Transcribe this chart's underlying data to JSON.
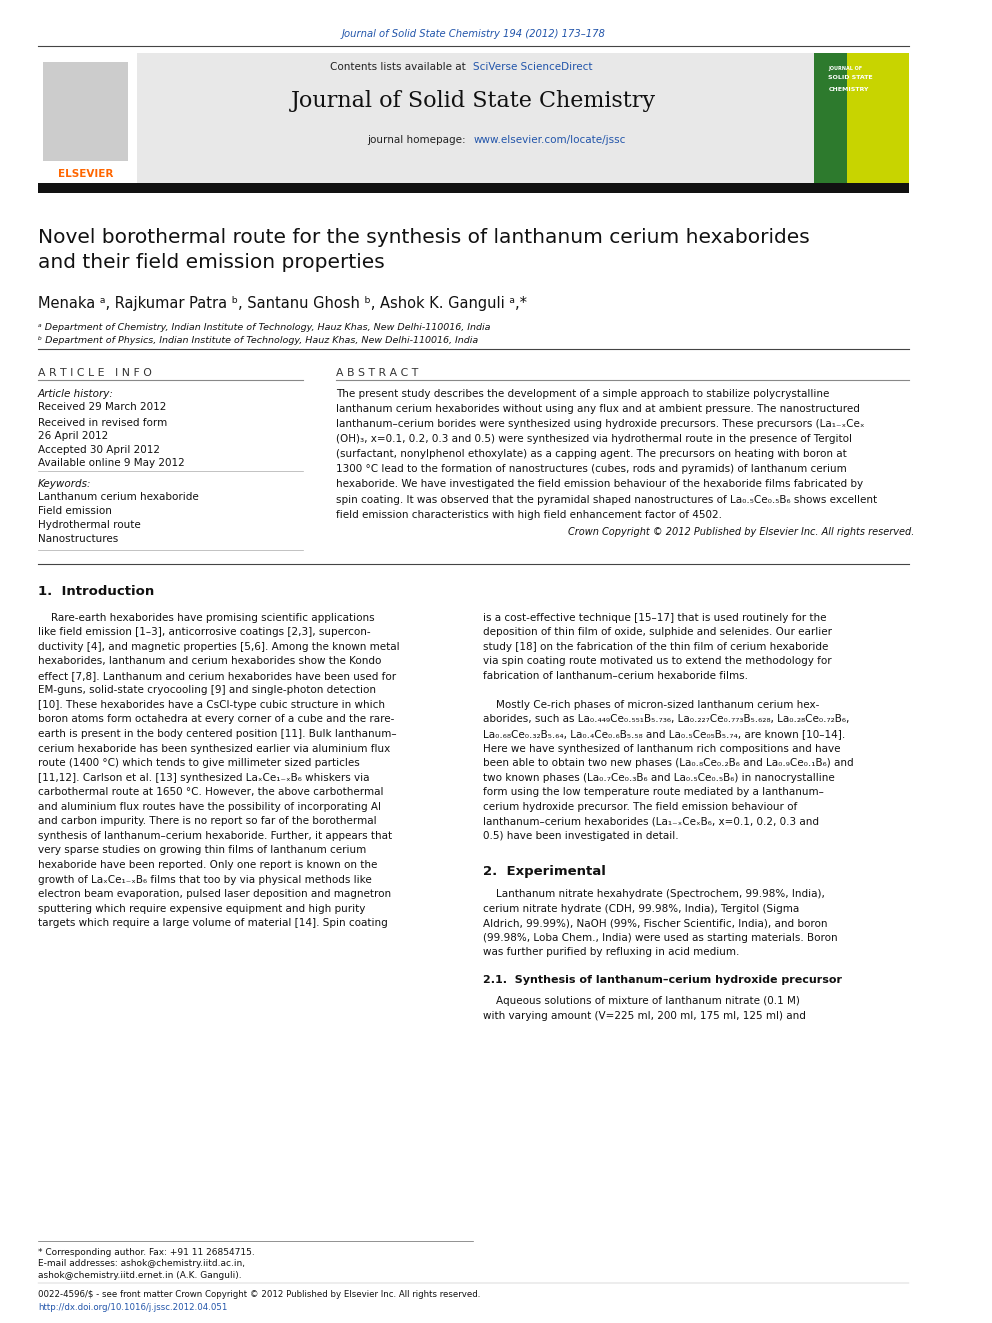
{
  "page_width": 9.92,
  "page_height": 13.23,
  "bg_color": "#ffffff",
  "header_journal_ref": "Journal of Solid State Chemistry 194 (2012) 173–178",
  "header_journal_ref_color": "#2255aa",
  "journal_title": "Journal of Solid State Chemistry",
  "contents_line": "Contents lists available at ",
  "sciverse_text": "SciVerse ScienceDirect",
  "sciverse_color": "#2255aa",
  "journal_homepage_text": "journal homepage: ",
  "journal_homepage_url": "www.elsevier.com/locate/jssc",
  "journal_homepage_url_color": "#2255aa",
  "elsevier_color": "#ff6600",
  "header_bg": "#e8e8e8",
  "black_bar_color": "#111111",
  "article_title": "Novel borothermal route for the synthesis of lanthanum cerium hexaborides\nand their field emission properties",
  "authors": "Menaka ᵃ, Rajkumar Patra ᵇ, Santanu Ghosh ᵇ, Ashok K. Ganguli ᵃ,*",
  "affil_a": "ᵃ Department of Chemistry, Indian Institute of Technology, Hauz Khas, New Delhi-110016, India",
  "affil_b": "ᵇ Department of Physics, Indian Institute of Technology, Hauz Khas, New Delhi-110016, India",
  "article_info_header": "A R T I C L E   I N F O",
  "abstract_header": "A B S T R A C T",
  "article_history_label": "Article history:",
  "received_text": "Received 29 March 2012",
  "accepted_text": "Accepted 30 April 2012",
  "available_text": "Available online 9 May 2012",
  "keywords_label": "Keywords:",
  "keywords": [
    "Lanthanum cerium hexaboride",
    "Field emission",
    "Hydrothermal route",
    "Nanostructures"
  ],
  "copyright_text": "Crown Copyright © 2012 Published by Elsevier Inc. All rights reserved.",
  "section1_title": "1.  Introduction",
  "section2_title": "2.  Experimental",
  "section21_title": "2.1.  Synthesis of lanthanum–cerium hydroxide precursor",
  "footer_line1": "* Corresponding author. Fax: +91 11 26854715.",
  "footer_line2": "E-mail addresses: ashok@chemistry.iitd.ac.in,",
  "footer_line3": "ashok@chemistry.iitd.ernet.in (A.K. Ganguli).",
  "footer_bottom1": "0022-4596/$ - see front matter Crown Copyright © 2012 Published by Elsevier Inc. All rights reserved.",
  "footer_bottom2": "http://dx.doi.org/10.1016/j.jssc.2012.04.051",
  "link_color": "#2255aa",
  "text_color": "#000000"
}
